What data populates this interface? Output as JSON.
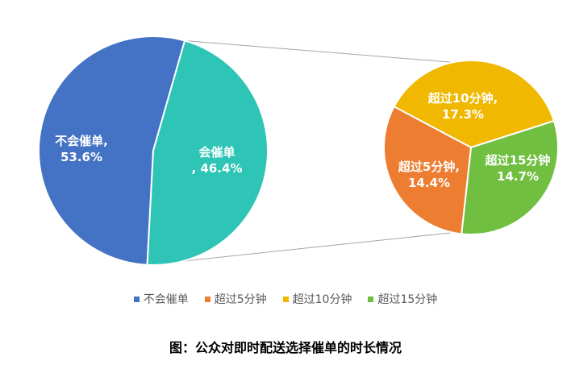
{
  "chart_data": {
    "type": "pie",
    "subtype": "pie-of-pie",
    "main_pie": {
      "slices": [
        {
          "label": "不会催单",
          "value": 53.6,
          "data_label_name": "不会催单,",
          "data_label_value": "53.6%",
          "color": "#4472C4"
        },
        {
          "label": "会催单",
          "value": 46.4,
          "data_label_name": "会催单",
          "data_label_value": ", 46.4%",
          "color": "#2EC4B6"
        }
      ]
    },
    "secondary_pie": {
      "breakdown_of": "会催单",
      "slices": [
        {
          "label": "超过5分钟",
          "value": 14.4,
          "data_label_name": "超过5分钟,",
          "data_label_value": "14.4%",
          "color": "#ED7D31"
        },
        {
          "label": "超过10分钟",
          "value": 17.3,
          "data_label_name": "超过10分钟,",
          "data_label_value": "17.3%",
          "color": "#F0B800"
        },
        {
          "label": "超过15分钟",
          "value": 14.7,
          "data_label_name": "超过15分钟",
          "data_label_value": "14.7%",
          "color": "#70BF41"
        }
      ]
    },
    "legend": {
      "placement": "bottom",
      "entries": [
        {
          "label": "不会催单",
          "color": "#4472C4"
        },
        {
          "label": "超过5分钟",
          "color": "#ED7D31"
        },
        {
          "label": "超过10分钟",
          "color": "#F0B800"
        },
        {
          "label": "超过15分钟",
          "color": "#70BF41"
        }
      ]
    },
    "caption": "图：公众对即时配送选择催单的时长情况",
    "connector_color": "#A6A6A6"
  }
}
